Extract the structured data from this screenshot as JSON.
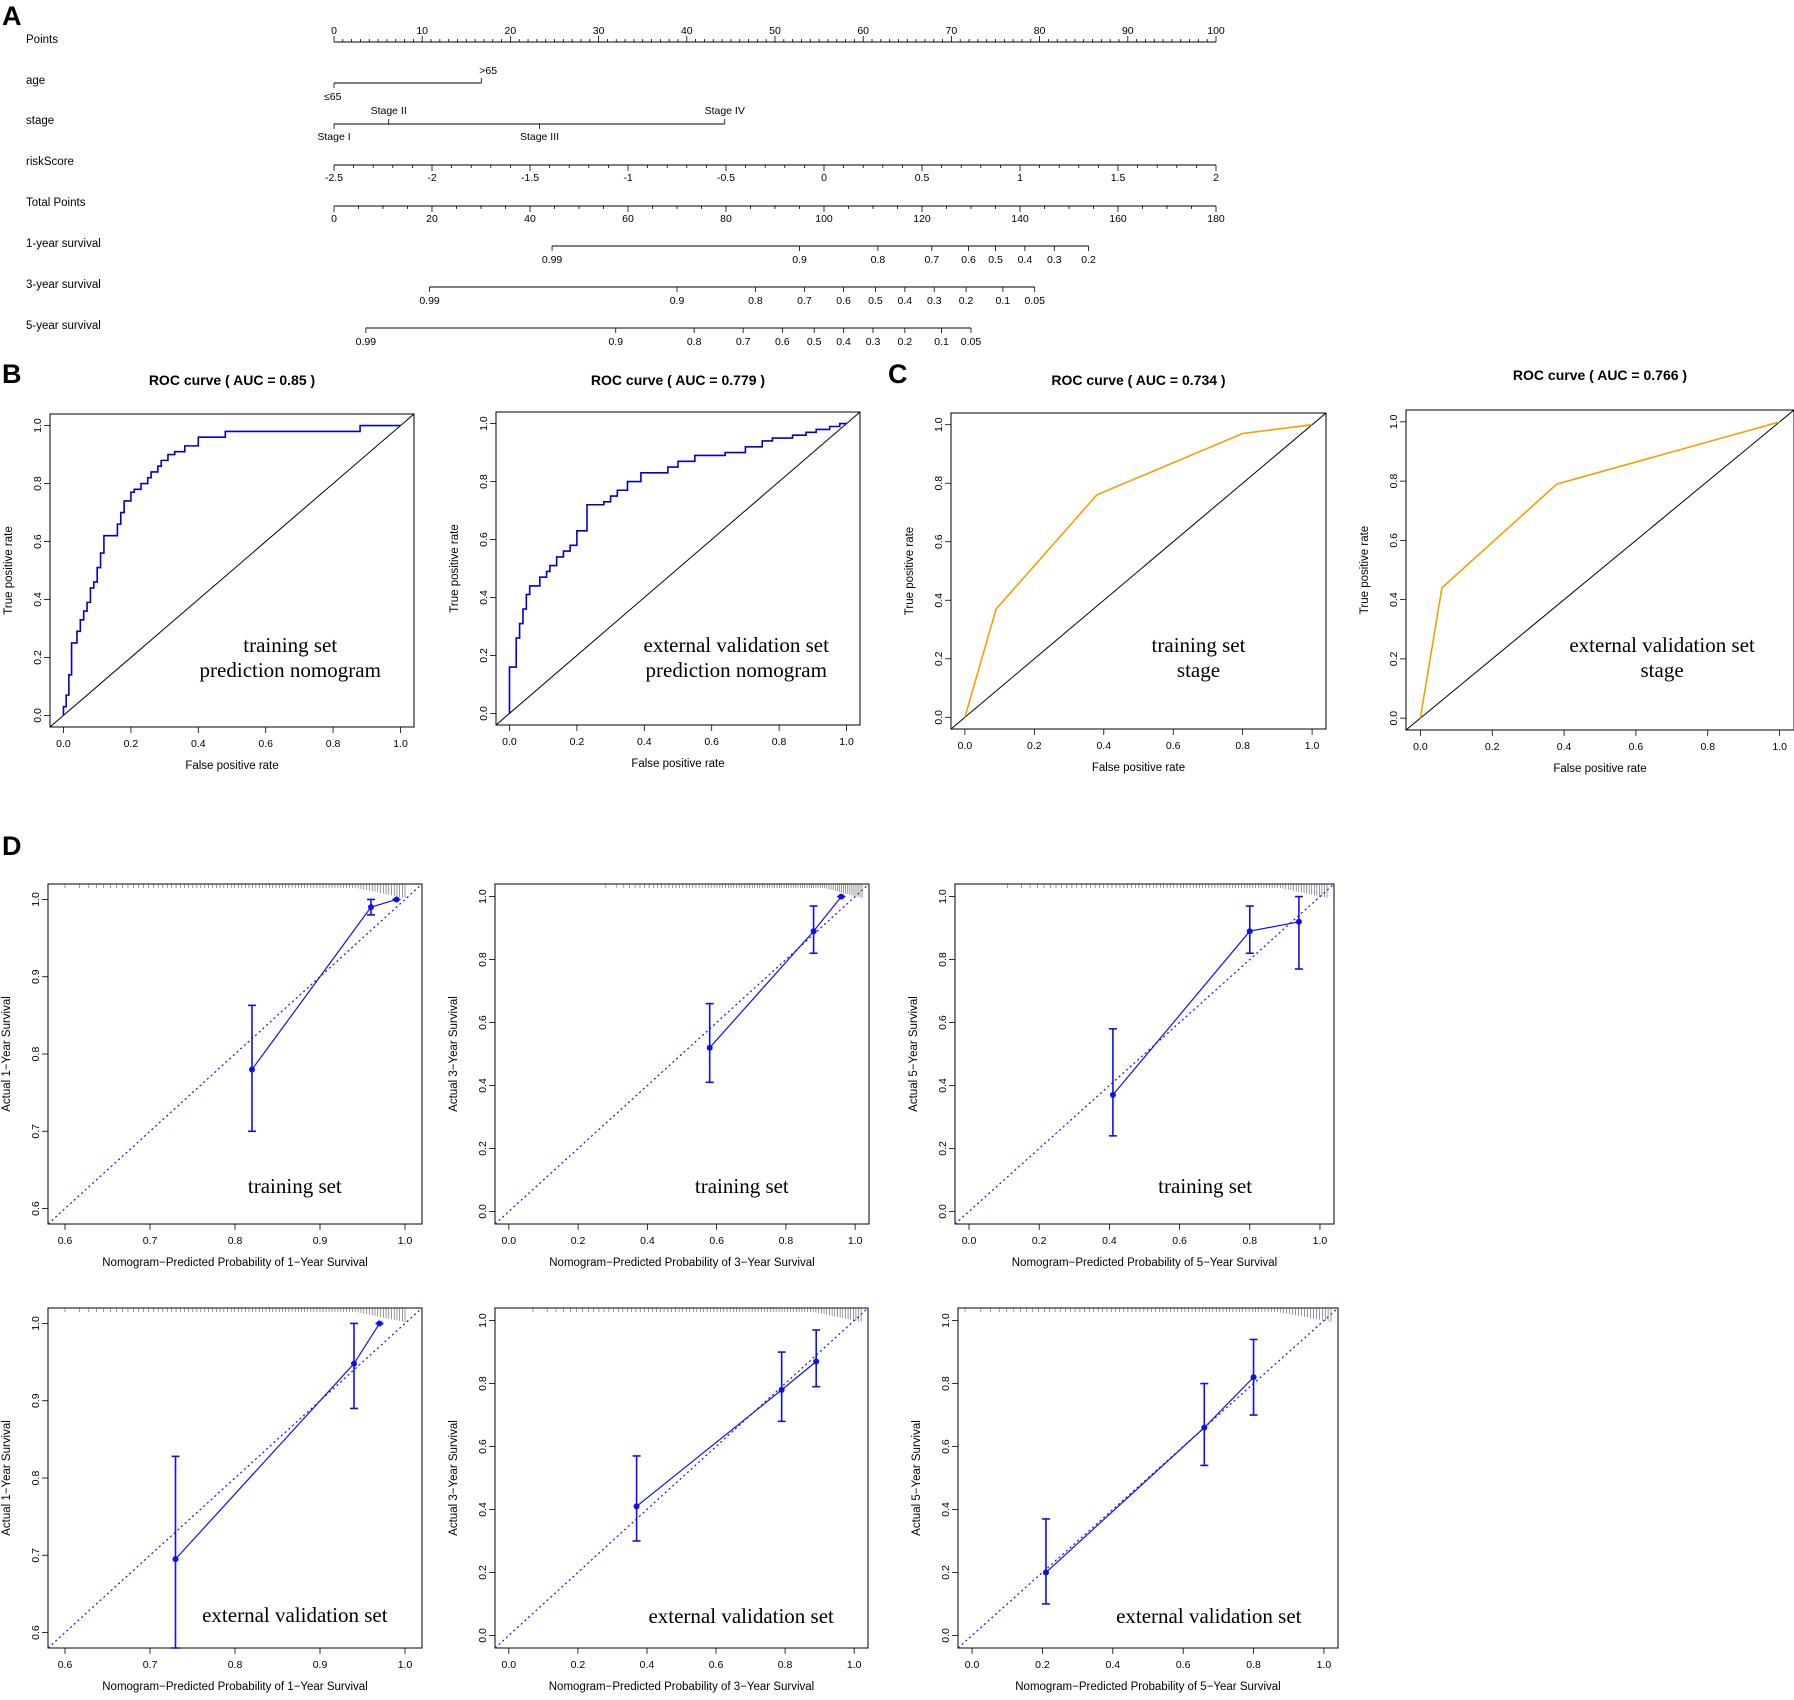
{
  "panels": {
    "A": "A",
    "B": "B",
    "C": "C",
    "D": "D"
  },
  "colors": {
    "roc_nomogram": "#0000cc",
    "roc_stage": "#f5a000",
    "calibration": "#1010ee",
    "reference": "#000000"
  },
  "nomogram": {
    "scales": [
      {
        "label": "Points",
        "ticks": [
          0,
          10,
          20,
          30,
          40,
          50,
          60,
          70,
          80,
          90,
          100
        ],
        "tick_labels": [
          "0",
          "10",
          "20",
          "30",
          "40",
          "50",
          "60",
          "70",
          "80",
          "90",
          "100"
        ]
      },
      {
        "label": "age",
        "levels": [
          {
            "label": "≤65",
            "points": 0
          },
          {
            "label": ">65",
            "points": 16.7
          }
        ]
      },
      {
        "label": "stage",
        "levels": [
          {
            "label": "Stage I",
            "points": 0
          },
          {
            "label": "Stage II",
            "points": 6.2
          },
          {
            "label": "Stage III",
            "points": 23.3
          },
          {
            "label": "Stage IV",
            "points": 44.3
          }
        ]
      },
      {
        "label": "riskScore",
        "tick_labels": [
          "-2.5",
          "-2",
          "-1.5",
          "-1",
          "-0.5",
          "0",
          "0.5",
          "1",
          "1.5",
          "2"
        ]
      },
      {
        "label": "Total Points",
        "tick_labels": [
          "0",
          "20",
          "40",
          "60",
          "80",
          "100",
          "120",
          "140",
          "160",
          "180"
        ]
      },
      {
        "label": "1-year survival",
        "tick_labels": [
          "0.99",
          "0.9",
          "0.8",
          "0.7",
          "0.6",
          "0.5",
          "0.4",
          "0.3",
          "0.2"
        ],
        "total_points": [
          44.5,
          95,
          111,
          122,
          129.5,
          135,
          141,
          147,
          154
        ]
      },
      {
        "label": "3-year survival",
        "tick_labels": [
          "0.99",
          "0.9",
          "0.8",
          "0.7",
          "0.6",
          "0.5",
          "0.4",
          "0.3",
          "0.2",
          "0.1",
          "0.05"
        ],
        "total_points": [
          19.5,
          70,
          86,
          96,
          104,
          110.5,
          116.5,
          122.5,
          129,
          136.5,
          143
        ]
      },
      {
        "label": "5-year survival",
        "tick_labels": [
          "0.99",
          "0.9",
          "0.8",
          "0.7",
          "0.6",
          "0.5",
          "0.4",
          "0.3",
          "0.2",
          "0.1",
          "0.05"
        ],
        "total_points": [
          6.5,
          57.5,
          73.5,
          83.5,
          91.5,
          98,
          104,
          110,
          116.5,
          124,
          130
        ]
      }
    ]
  },
  "chart_data": [
    {
      "panel": "B",
      "type": "line",
      "title": "ROC curve ( AUC =  0.85 )",
      "xlabel": "False positive rate",
      "ylabel": "True positive rate",
      "xlim": [
        0,
        1
      ],
      "ylim": [
        0,
        1
      ],
      "x_ticks": [
        "0.0",
        "0.2",
        "0.4",
        "0.6",
        "0.8",
        "1.0"
      ],
      "y_ticks": [
        "0.0",
        "0.2",
        "0.4",
        "0.6",
        "0.8",
        "1.0"
      ],
      "annotation": [
        "training set",
        "prediction nomogram"
      ],
      "series": [
        {
          "name": "nomogram",
          "x": [
            0,
            0,
            0.008,
            0.008,
            0.016,
            0.016,
            0.024,
            0.024,
            0.04,
            0.04,
            0.05,
            0.05,
            0.06,
            0.06,
            0.07,
            0.07,
            0.08,
            0.08,
            0.09,
            0.09,
            0.1,
            0.1,
            0.11,
            0.11,
            0.12,
            0.12,
            0.16,
            0.16,
            0.17,
            0.17,
            0.18,
            0.18,
            0.2,
            0.2,
            0.21,
            0.21,
            0.23,
            0.23,
            0.25,
            0.25,
            0.26,
            0.26,
            0.28,
            0.28,
            0.29,
            0.29,
            0.31,
            0.31,
            0.33,
            0.33,
            0.36,
            0.36,
            0.4,
            0.4,
            0.48,
            0.48,
            0.88,
            0.88,
            1
          ],
          "y": [
            0,
            0.03,
            0.03,
            0.07,
            0.07,
            0.14,
            0.14,
            0.25,
            0.25,
            0.29,
            0.29,
            0.33,
            0.33,
            0.36,
            0.36,
            0.39,
            0.39,
            0.44,
            0.44,
            0.46,
            0.46,
            0.51,
            0.51,
            0.56,
            0.56,
            0.62,
            0.62,
            0.66,
            0.66,
            0.7,
            0.7,
            0.74,
            0.74,
            0.77,
            0.77,
            0.78,
            0.78,
            0.8,
            0.8,
            0.82,
            0.82,
            0.84,
            0.84,
            0.86,
            0.86,
            0.88,
            0.88,
            0.9,
            0.9,
            0.91,
            0.91,
            0.93,
            0.93,
            0.96,
            0.96,
            0.98,
            0.98,
            1,
            1
          ]
        }
      ]
    },
    {
      "panel": "B",
      "type": "line",
      "title": "ROC curve ( AUC =  0.779 )",
      "xlabel": "False positive rate",
      "ylabel": "True positive rate",
      "xlim": [
        0,
        1
      ],
      "ylim": [
        0,
        1
      ],
      "x_ticks": [
        "0.0",
        "0.2",
        "0.4",
        "0.6",
        "0.8",
        "1.0"
      ],
      "y_ticks": [
        "0.0",
        "0.2",
        "0.4",
        "0.6",
        "0.8",
        "1.0"
      ],
      "annotation": [
        "external validation set",
        "prediction nomogram"
      ],
      "series": [
        {
          "name": "nomogram",
          "x": [
            0,
            0,
            0.02,
            0.02,
            0.03,
            0.03,
            0.04,
            0.04,
            0.05,
            0.05,
            0.06,
            0.06,
            0.09,
            0.09,
            0.11,
            0.11,
            0.12,
            0.12,
            0.14,
            0.14,
            0.16,
            0.16,
            0.18,
            0.18,
            0.2,
            0.2,
            0.23,
            0.23,
            0.28,
            0.28,
            0.3,
            0.3,
            0.32,
            0.32,
            0.35,
            0.35,
            0.39,
            0.39,
            0.47,
            0.47,
            0.5,
            0.5,
            0.55,
            0.55,
            0.64,
            0.64,
            0.7,
            0.7,
            0.75,
            0.75,
            0.78,
            0.78,
            0.84,
            0.84,
            0.88,
            0.88,
            0.91,
            0.91,
            0.95,
            0.95,
            0.98,
            0.98,
            1
          ],
          "y": [
            0,
            0.16,
            0.16,
            0.26,
            0.26,
            0.31,
            0.31,
            0.36,
            0.36,
            0.41,
            0.41,
            0.44,
            0.44,
            0.47,
            0.47,
            0.49,
            0.49,
            0.51,
            0.51,
            0.54,
            0.54,
            0.56,
            0.56,
            0.58,
            0.58,
            0.63,
            0.63,
            0.72,
            0.72,
            0.73,
            0.73,
            0.75,
            0.75,
            0.77,
            0.77,
            0.8,
            0.8,
            0.83,
            0.83,
            0.85,
            0.85,
            0.87,
            0.87,
            0.89,
            0.89,
            0.9,
            0.9,
            0.92,
            0.92,
            0.94,
            0.94,
            0.95,
            0.95,
            0.96,
            0.96,
            0.97,
            0.97,
            0.98,
            0.98,
            0.99,
            0.99,
            1,
            1
          ]
        }
      ]
    },
    {
      "panel": "C",
      "type": "line",
      "title": "ROC curve ( AUC =  0.734 )",
      "xlabel": "False positive rate",
      "ylabel": "True positive rate",
      "xlim": [
        0,
        1
      ],
      "ylim": [
        0,
        1
      ],
      "x_ticks": [
        "0.0",
        "0.2",
        "0.4",
        "0.6",
        "0.8",
        "1.0"
      ],
      "y_ticks": [
        "0.0",
        "0.2",
        "0.4",
        "0.6",
        "0.8",
        "1.0"
      ],
      "annotation": [
        "training set",
        "stage"
      ],
      "series": [
        {
          "name": "stage",
          "x": [
            0,
            0.09,
            0.38,
            0.8,
            1
          ],
          "y": [
            0,
            0.37,
            0.76,
            0.97,
            1
          ]
        }
      ]
    },
    {
      "panel": "C",
      "type": "line",
      "title": "ROC curve ( AUC =  0.766 )",
      "xlabel": "False positive rate",
      "ylabel": "True positive rate",
      "xlim": [
        0,
        1
      ],
      "ylim": [
        0,
        1
      ],
      "x_ticks": [
        "0.0",
        "0.2",
        "0.4",
        "0.6",
        "0.8",
        "1.0"
      ],
      "y_ticks": [
        "0.0",
        "0.2",
        "0.4",
        "0.6",
        "0.8",
        "1.0"
      ],
      "annotation": [
        "external validation set",
        "stage"
      ],
      "series": [
        {
          "name": "stage",
          "x": [
            0,
            0.06,
            0.38,
            1
          ],
          "y": [
            0,
            0.44,
            0.79,
            1
          ]
        }
      ]
    },
    {
      "panel": "D",
      "type": "scatter",
      "xlabel": "Nomogram−Predicted Probability of 1−Year Survival",
      "ylabel": "Actual 1−Year Survival",
      "xlim": [
        0.58,
        1.02
      ],
      "ylim": [
        0.58,
        1.02
      ],
      "x_ticks": [
        "0.6",
        "0.7",
        "0.8",
        "0.9",
        "1.0"
      ],
      "y_ticks": [
        "0.6",
        "0.7",
        "0.8",
        "0.9",
        "1.0"
      ],
      "annotation": [
        "training set"
      ],
      "series": [
        {
          "name": "calibration",
          "x": [
            0.82,
            0.96,
            0.99
          ],
          "y": [
            0.78,
            0.99,
            1.0
          ],
          "lower": [
            0.7,
            0.98,
            1.0
          ],
          "upper": [
            0.863,
            1.0,
            1.0
          ]
        }
      ]
    },
    {
      "panel": "D",
      "type": "scatter",
      "xlabel": "Nomogram−Predicted Probability of 3−Year Survival",
      "ylabel": "Actual 3−Year Survival",
      "xlim": [
        -0.04,
        1.04
      ],
      "ylim": [
        -0.04,
        1.04
      ],
      "x_ticks": [
        "0.0",
        "0.2",
        "0.4",
        "0.6",
        "0.8",
        "1.0"
      ],
      "y_ticks": [
        "0.0",
        "0.2",
        "0.4",
        "0.6",
        "0.8",
        "1.0"
      ],
      "annotation": [
        "training set"
      ],
      "series": [
        {
          "name": "calibration",
          "x": [
            0.58,
            0.88,
            0.96
          ],
          "y": [
            0.52,
            0.89,
            1.0
          ],
          "lower": [
            0.41,
            0.82,
            1.0
          ],
          "upper": [
            0.66,
            0.97,
            1.0
          ]
        }
      ]
    },
    {
      "panel": "D",
      "type": "scatter",
      "xlabel": "Nomogram−Predicted Probability of 5−Year Survival",
      "ylabel": "Actual 5−Year Survival",
      "xlim": [
        -0.04,
        1.04
      ],
      "ylim": [
        -0.04,
        1.04
      ],
      "x_ticks": [
        "0.0",
        "0.2",
        "0.4",
        "0.6",
        "0.8",
        "1.0"
      ],
      "y_ticks": [
        "0.0",
        "0.2",
        "0.4",
        "0.6",
        "0.8",
        "1.0"
      ],
      "annotation": [
        "training set"
      ],
      "series": [
        {
          "name": "calibration",
          "x": [
            0.41,
            0.8,
            0.94
          ],
          "y": [
            0.37,
            0.89,
            0.92
          ],
          "lower": [
            0.24,
            0.82,
            0.77
          ],
          "upper": [
            0.58,
            0.97,
            1.0
          ]
        }
      ]
    },
    {
      "panel": "D",
      "type": "scatter",
      "xlabel": "Nomogram−Predicted Probability of 1−Year Survival",
      "ylabel": "Actual 1−Year Survival",
      "xlim": [
        0.58,
        1.02
      ],
      "ylim": [
        0.58,
        1.02
      ],
      "x_ticks": [
        "0.6",
        "0.7",
        "0.8",
        "0.9",
        "1.0"
      ],
      "y_ticks": [
        "0.6",
        "0.7",
        "0.8",
        "0.9",
        "1.0"
      ],
      "annotation": [
        "external validation set"
      ],
      "series": [
        {
          "name": "calibration",
          "x": [
            0.73,
            0.94,
            0.97
          ],
          "y": [
            0.695,
            0.948,
            1.0
          ],
          "lower": [
            0.58,
            0.89,
            1.0
          ],
          "upper": [
            0.828,
            1.0,
            1.0
          ]
        }
      ]
    },
    {
      "panel": "D",
      "type": "scatter",
      "xlabel": "Nomogram−Predicted Probability of 3−Year Survival",
      "ylabel": "Actual 3−Year Survival",
      "xlim": [
        -0.04,
        1.04
      ],
      "ylim": [
        -0.04,
        1.04
      ],
      "x_ticks": [
        "0.0",
        "0.2",
        "0.4",
        "0.6",
        "0.8",
        "1.0"
      ],
      "y_ticks": [
        "0.0",
        "0.2",
        "0.4",
        "0.6",
        "0.8",
        "1.0"
      ],
      "annotation": [
        "external validation set"
      ],
      "series": [
        {
          "name": "calibration",
          "x": [
            0.37,
            0.79,
            0.89
          ],
          "y": [
            0.41,
            0.78,
            0.87
          ],
          "lower": [
            0.3,
            0.68,
            0.79
          ],
          "upper": [
            0.57,
            0.9,
            0.97
          ]
        }
      ]
    },
    {
      "panel": "D",
      "type": "scatter",
      "xlabel": "Nomogram−Predicted Probability of 5−Year Survival",
      "ylabel": "Actual 5−Year Survival",
      "xlim": [
        -0.04,
        1.04
      ],
      "ylim": [
        -0.04,
        1.04
      ],
      "x_ticks": [
        "0.0",
        "0.2",
        "0.4",
        "0.6",
        "0.8",
        "1.0"
      ],
      "y_ticks": [
        "0.0",
        "0.2",
        "0.4",
        "0.6",
        "0.8",
        "1.0"
      ],
      "annotation": [
        "external validation set"
      ],
      "series": [
        {
          "name": "calibration",
          "x": [
            0.21,
            0.66,
            0.8
          ],
          "y": [
            0.2,
            0.66,
            0.82
          ],
          "lower": [
            0.1,
            0.54,
            0.7
          ],
          "upper": [
            0.37,
            0.8,
            0.94
          ]
        }
      ]
    }
  ]
}
